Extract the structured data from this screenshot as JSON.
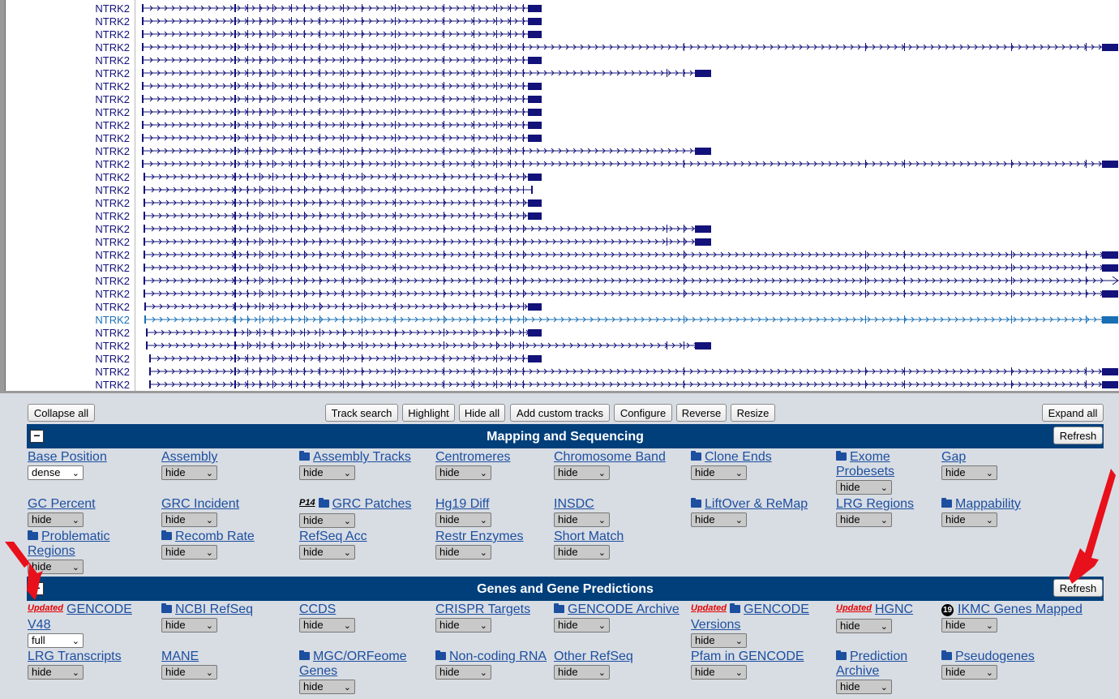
{
  "browser": {
    "gene_label": "NTRK2",
    "rows": [
      {
        "start": 177,
        "end": 667,
        "ticks": []
      },
      {
        "start": 177,
        "end": 667,
        "ticks": []
      },
      {
        "start": 177,
        "end": 667,
        "ticks": []
      },
      {
        "start": 177,
        "end": 1378,
        "ticks": [
          843,
          1067,
          1115,
          1247,
          1339
        ]
      },
      {
        "start": 177,
        "end": 667,
        "ticks": []
      },
      {
        "start": 177,
        "end": 876,
        "ticks": [
          822,
          843
        ]
      },
      {
        "start": 177,
        "end": 667,
        "ticks": []
      },
      {
        "start": 177,
        "end": 667,
        "ticks": []
      },
      {
        "start": 177,
        "end": 667,
        "ticks": []
      },
      {
        "start": 177,
        "end": 667,
        "ticks": []
      },
      {
        "start": 177,
        "end": 667,
        "ticks": []
      },
      {
        "start": 177,
        "end": 876,
        "ticks": []
      },
      {
        "start": 177,
        "end": 1378,
        "ticks": [
          843,
          1067,
          1115,
          1247,
          1339
        ]
      },
      {
        "start": 179,
        "end": 667,
        "ticks": []
      },
      {
        "start": 179,
        "end": 656,
        "ticks": []
      },
      {
        "start": 179,
        "end": 667,
        "ticks": []
      },
      {
        "start": 179,
        "end": 667,
        "ticks": []
      },
      {
        "start": 179,
        "end": 876,
        "ticks": [
          822,
          843
        ]
      },
      {
        "start": 179,
        "end": 876,
        "ticks": [
          822,
          843
        ]
      },
      {
        "start": 179,
        "end": 1378,
        "ticks": [
          843,
          1067,
          1115,
          1247,
          1339
        ]
      },
      {
        "start": 179,
        "end": 1378,
        "ticks": [
          843,
          1067,
          1115,
          1247,
          1339
        ]
      },
      {
        "start": 179,
        "end": 1378,
        "ticks": [
          843,
          1067,
          1115,
          1247,
          1339
        ],
        "open_end": true
      },
      {
        "start": 179,
        "end": 1378,
        "ticks": [
          843,
          1067,
          1115,
          1247,
          1339
        ]
      },
      {
        "start": 180,
        "end": 667,
        "ticks": []
      },
      {
        "start": 180,
        "end": 1378,
        "ticks": [
          843,
          1067,
          1115,
          1247,
          1339
        ],
        "highlight": true
      },
      {
        "start": 182,
        "end": 667,
        "ticks": []
      },
      {
        "start": 182,
        "end": 876,
        "ticks": [
          822,
          843
        ]
      },
      {
        "start": 186,
        "end": 667,
        "ticks": []
      },
      {
        "start": 186,
        "end": 1378,
        "ticks": [
          843,
          1067,
          1115,
          1247,
          1339
        ]
      },
      {
        "start": 186,
        "end": 1378,
        "ticks": [
          843,
          1067,
          1115,
          1247,
          1339
        ]
      }
    ]
  },
  "toolbar": {
    "collapse_all": "Collapse all",
    "track_search": "Track search",
    "highlight": "Highlight",
    "hide_all": "Hide all",
    "add_custom_tracks": "Add custom tracks",
    "configure": "Configure",
    "reverse": "Reverse",
    "resize": "Resize",
    "expand_all": "Expand all"
  },
  "groups": [
    {
      "title": "Mapping and Sequencing",
      "minus": "−",
      "refresh": "Refresh",
      "tracks": [
        {
          "name": "Base Position",
          "select": "dense"
        },
        {
          "name": "Assembly",
          "select": "hide"
        },
        {
          "name": "Assembly Tracks",
          "select": "hide",
          "folder": true
        },
        {
          "name": "Centromeres",
          "select": "hide"
        },
        {
          "name": "Chromosome Band",
          "select": "hide"
        },
        {
          "name": "Clone Ends",
          "select": "hide",
          "folder": true
        },
        {
          "name": "Exome Probesets",
          "select": "hide",
          "folder": true
        },
        {
          "name": "Gap",
          "select": "hide"
        },
        {
          "name": "GC Percent",
          "select": "hide"
        },
        {
          "name": "GRC Incident",
          "select": "hide"
        },
        {
          "name": "GRC Patches",
          "select": "hide",
          "folder": true,
          "prefix": "P14"
        },
        {
          "name": "Hg19 Diff",
          "select": "hide"
        },
        {
          "name": "INSDC",
          "select": "hide"
        },
        {
          "name": "LiftOver & ReMap",
          "select": "hide",
          "folder": true
        },
        {
          "name": "LRG Regions",
          "select": "hide"
        },
        {
          "name": "Mappability",
          "select": "hide",
          "folder": true
        },
        {
          "name": "Problematic Regions",
          "select": "hide",
          "folder": true
        },
        {
          "name": "Recomb Rate",
          "select": "hide",
          "folder": true
        },
        {
          "name": "RefSeq Acc",
          "select": "hide"
        },
        {
          "name": "Restr Enzymes",
          "select": "hide"
        },
        {
          "name": "Short Match",
          "select": "hide"
        }
      ]
    },
    {
      "title": "Genes and Gene Predictions",
      "minus": "−",
      "refresh": "Refresh",
      "tracks": [
        {
          "name": "GENCODE V48",
          "select": "full",
          "updated": "Updated"
        },
        {
          "name": "NCBI RefSeq",
          "select": "hide",
          "folder": true
        },
        {
          "name": "CCDS",
          "select": "hide"
        },
        {
          "name": "CRISPR Targets",
          "select": "hide"
        },
        {
          "name": "GENCODE Archive",
          "select": "hide",
          "folder": true
        },
        {
          "name": "GENCODE Versions",
          "select": "hide",
          "folder": true,
          "updated": "Updated"
        },
        {
          "name": "HGNC",
          "select": "hide",
          "updated": "Updated"
        },
        {
          "name": "IKMC Genes Mapped",
          "select": "hide",
          "badge": "19"
        },
        {
          "name": "LRG Transcripts",
          "select": "hide"
        },
        {
          "name": "MANE",
          "select": "hide"
        },
        {
          "name": "MGC/ORFeome Genes",
          "select": "hide",
          "folder": true
        },
        {
          "name": "Non-coding RNA",
          "select": "hide",
          "folder": true
        },
        {
          "name": "Other RefSeq",
          "select": "hide"
        },
        {
          "name": "Pfam in GENCODE",
          "select": "hide"
        },
        {
          "name": "Prediction Archive",
          "select": "hide",
          "folder": true
        },
        {
          "name": "Pseudogenes",
          "select": "hide",
          "folder": true
        }
      ]
    }
  ],
  "colors": {
    "bar": "#003f7a",
    "gene": "#12127a",
    "highlight": "#1a6fb4",
    "link": "#1d4fa0",
    "arrow": "#e8101a"
  }
}
